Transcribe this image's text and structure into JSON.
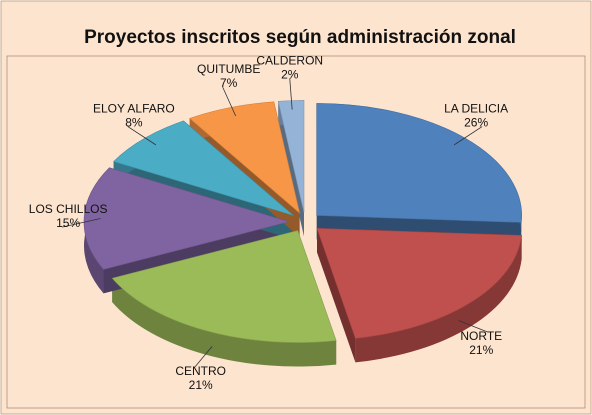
{
  "chart_data": {
    "type": "pie",
    "title": "Proyectos inscritos según administración zonal",
    "categories": [
      "LA DELICIA",
      "NORTE",
      "CENTRO",
      "LOS CHILLOS",
      "ELOY ALFARO",
      "QUITUMBE",
      "CALDERON"
    ],
    "values": [
      26,
      21,
      21,
      15,
      8,
      7,
      2
    ],
    "value_labels": [
      "26%",
      "21%",
      "21%",
      "15%",
      "8%",
      "7%",
      "2%"
    ],
    "colors": [
      "#4f81bd",
      "#c0504d",
      "#9bbb59",
      "#8064a2",
      "#4bacc6",
      "#f79646",
      "#95b3d7"
    ]
  }
}
